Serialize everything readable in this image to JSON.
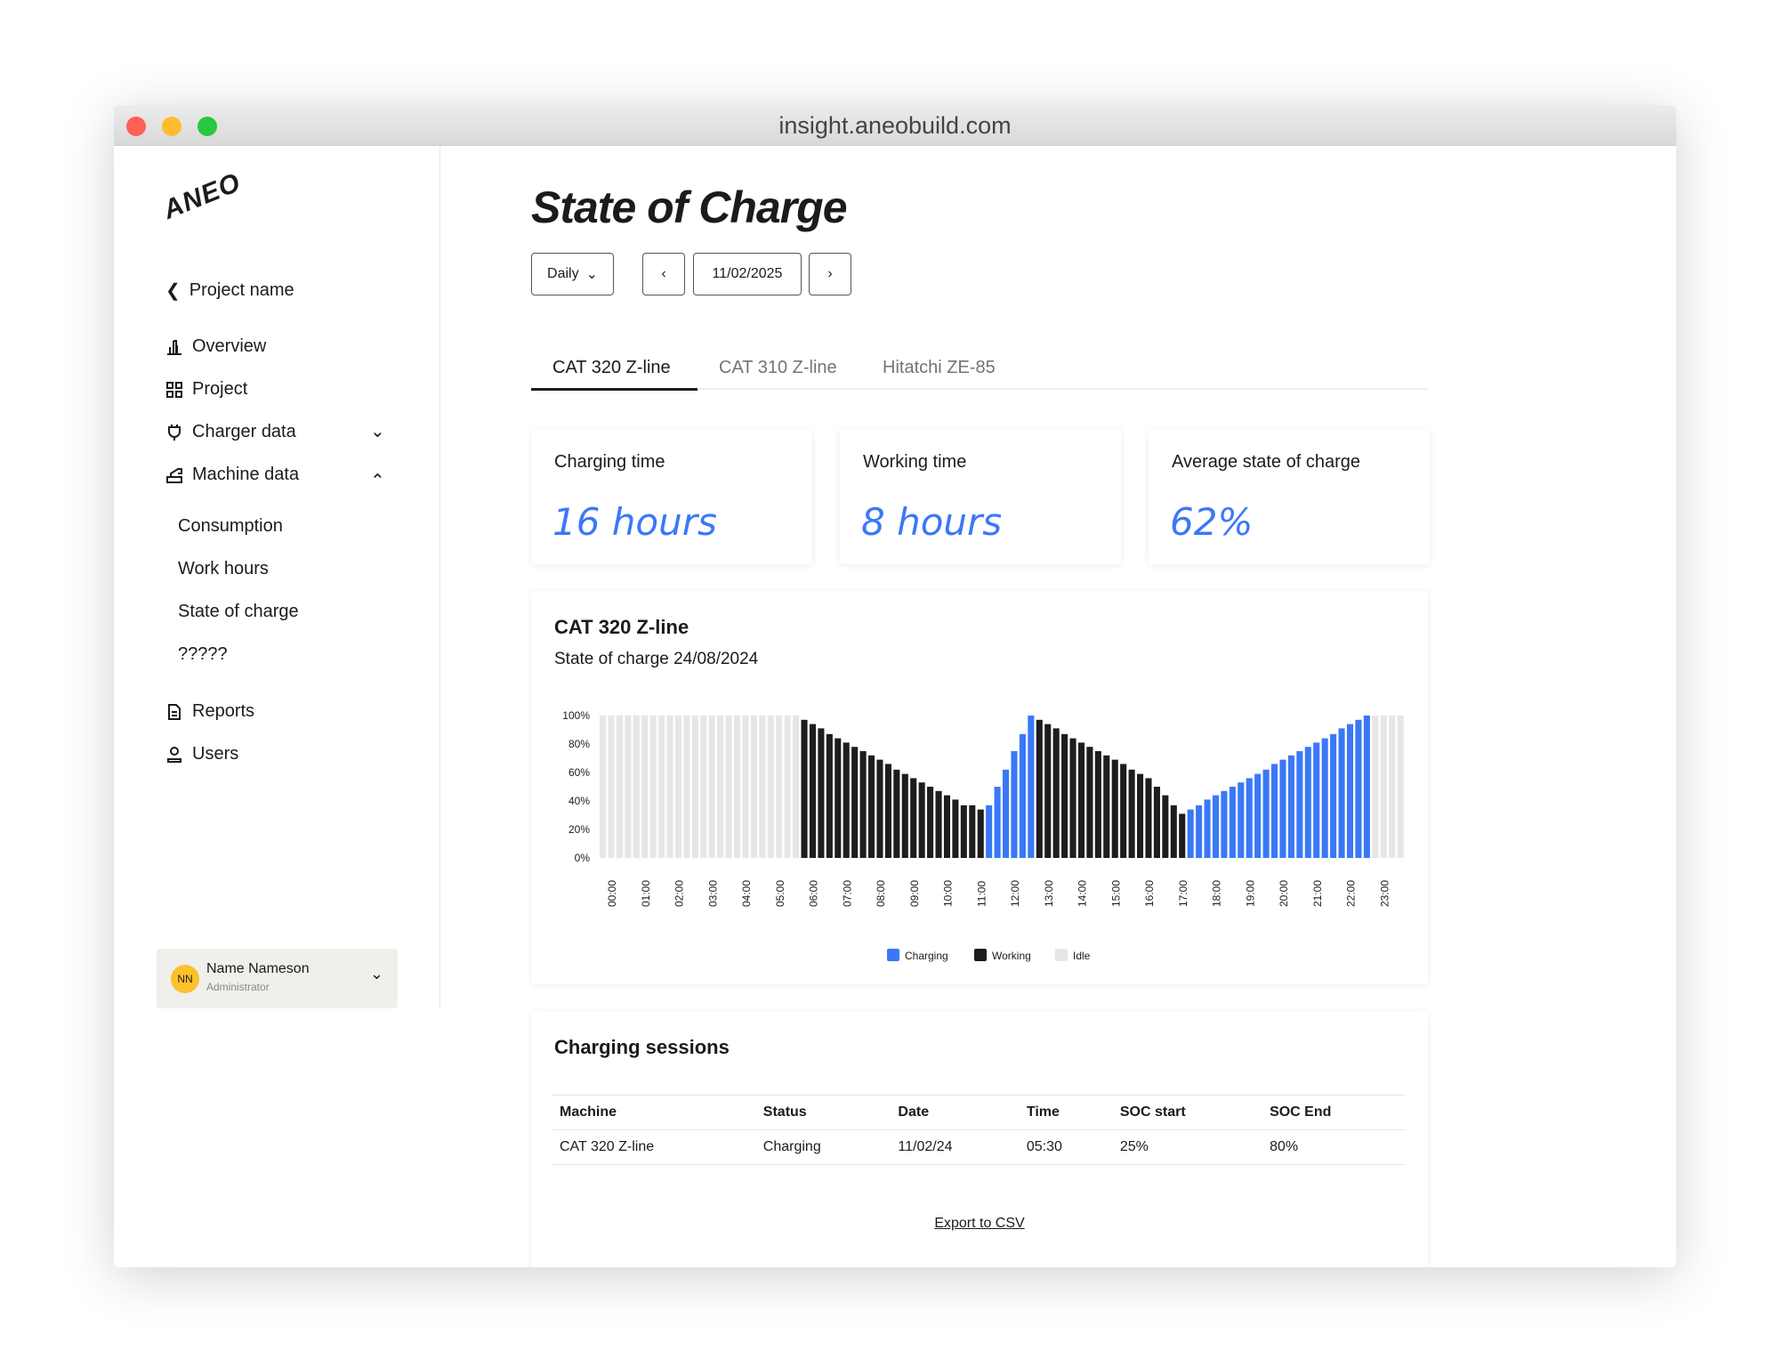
{
  "browser": {
    "url": "insight.aneobuild.com"
  },
  "sidebar": {
    "logo": "ANEO",
    "back": "Project name",
    "items": [
      {
        "label": "Overview",
        "icon": "bar-chart-icon"
      },
      {
        "label": "Project",
        "icon": "grid-icon"
      },
      {
        "label": "Charger data",
        "icon": "plug-icon"
      },
      {
        "label": "Machine data",
        "icon": "excavator-icon"
      }
    ],
    "sub_items": [
      "Consumption",
      "Work hours",
      "State of charge",
      "?????"
    ],
    "bottom_items": [
      {
        "label": "Reports",
        "icon": "document-icon"
      },
      {
        "label": "Users",
        "icon": "user-icon"
      }
    ],
    "user": {
      "initials": "NN",
      "name": "Name Nameson",
      "role": "Administrator"
    }
  },
  "header": {
    "title": "State of Charge",
    "period": "Daily",
    "date": "11/02/2025"
  },
  "tabs": [
    "CAT 320 Z-line",
    "CAT 310 Z-line",
    "Hitatchi ZE-85"
  ],
  "kpis": [
    {
      "label": "Charging time",
      "value": "16 hours"
    },
    {
      "label": "Working time",
      "value": "8 hours"
    },
    {
      "label": "Average state of charge",
      "value": "62%"
    }
  ],
  "chart_card": {
    "title": "CAT 320 Z-line",
    "subtitle": "State of charge 24/08/2024"
  },
  "chart_data": {
    "type": "bar",
    "ylim": [
      0,
      100
    ],
    "yticks": [
      "0%",
      "20%",
      "40%",
      "60%",
      "80%",
      "100%"
    ],
    "xticks": [
      "00:00",
      "01:00",
      "02:00",
      "03:00",
      "04:00",
      "05:00",
      "06:00",
      "07:00",
      "08:00",
      "09:00",
      "10:00",
      "11:00",
      "12:00",
      "13:00",
      "14:00",
      "15:00",
      "16:00",
      "17:00",
      "18:00",
      "19:00",
      "20:00",
      "21:00",
      "22:00",
      "23:00"
    ],
    "interval_minutes": 15,
    "legend": [
      {
        "name": "Charging",
        "color": "#3a78f7"
      },
      {
        "name": "Working",
        "color": "#1f1d1b"
      },
      {
        "name": "Idle",
        "color": "#e6e6e6"
      }
    ],
    "segments": [
      {
        "state": "Idle",
        "values": [
          100,
          100,
          100,
          100,
          100,
          100,
          100,
          100,
          100,
          100,
          100,
          100,
          100,
          100,
          100,
          100,
          100,
          100,
          100,
          100,
          100,
          100,
          100,
          100
        ]
      },
      {
        "state": "Working",
        "values": [
          97,
          94,
          91,
          87,
          84,
          81,
          78,
          75,
          72,
          69,
          66,
          62,
          59,
          56,
          53,
          50,
          47,
          44,
          41,
          37,
          37,
          34
        ]
      },
      {
        "state": "Charging",
        "values": [
          37,
          50,
          62,
          75,
          87,
          100
        ]
      },
      {
        "state": "Working",
        "values": [
          97,
          94,
          91,
          87,
          84,
          81,
          78,
          75,
          72,
          69,
          66,
          62,
          59,
          56,
          50,
          44,
          37,
          31
        ]
      },
      {
        "state": "Charging",
        "values": [
          34,
          37,
          41,
          44,
          47,
          50,
          53,
          56,
          59,
          62,
          66,
          69,
          72,
          75,
          78,
          81,
          84,
          87,
          91,
          94,
          97,
          100
        ]
      },
      {
        "state": "Idle",
        "values": [
          100,
          100,
          100,
          100
        ]
      }
    ]
  },
  "sessions": {
    "title": "Charging sessions",
    "columns": [
      "Machine",
      "Status",
      "Date",
      "Time",
      "SOC start",
      "SOC End"
    ],
    "rows": [
      [
        "CAT 320 Z-line",
        "Charging",
        "11/02/24",
        "05:30",
        "25%",
        "80%"
      ]
    ],
    "export": "Export to CSV"
  }
}
